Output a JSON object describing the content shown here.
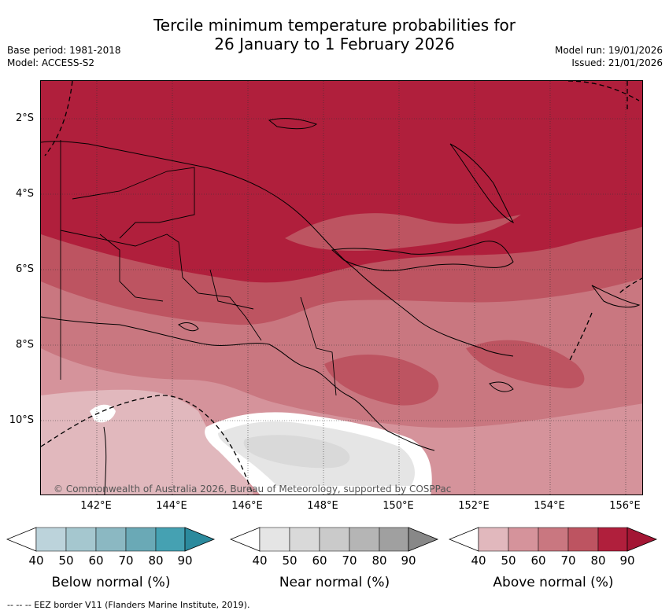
{
  "title_line1": "Tercile minimum temperature probabilities for",
  "title_line2": "26 January to 1 February 2026",
  "base_period": "Base period: 1981-2018",
  "model": "Model: ACCESS-S2",
  "model_run": "Model run: 19/01/2026",
  "issued": "Issued: 21/01/2026",
  "lat_labels": [
    "2°S",
    "4°S",
    "6°S",
    "8°S",
    "10°S"
  ],
  "lon_labels": [
    "142°E",
    "144°E",
    "146°E",
    "148°E",
    "150°E",
    "152°E",
    "154°E",
    "156°E"
  ],
  "copyright": "© Commonwealth of Australia 2026, Bureau of Meteorology, supported by COSPPac",
  "legends": [
    {
      "title": "Below normal (%)",
      "ticks": [
        "40",
        "50",
        "60",
        "70",
        "80",
        "90"
      ],
      "colors": [
        "#bcd3db",
        "#a5c7cf",
        "#8bb8c2",
        "#6aa9b6",
        "#45a1b2",
        "#2b8a9d"
      ]
    },
    {
      "title": "Near normal (%)",
      "ticks": [
        "40",
        "50",
        "60",
        "70",
        "80",
        "90"
      ],
      "colors": [
        "#e5e5e5",
        "#d9d9d9",
        "#cacaca",
        "#b5b5b5",
        "#a0a0a0",
        "#888888"
      ]
    },
    {
      "title": "Above normal (%)",
      "ticks": [
        "40",
        "50",
        "60",
        "70",
        "80",
        "90"
      ],
      "colors": [
        "#e1b8bd",
        "#d5939b",
        "#c97780",
        "#bd5461",
        "#b01f3c",
        "#a31634"
      ]
    }
  ],
  "footnote": "--  --  -- EEZ border V11 (Flanders Marine Institute, 2019)."
}
